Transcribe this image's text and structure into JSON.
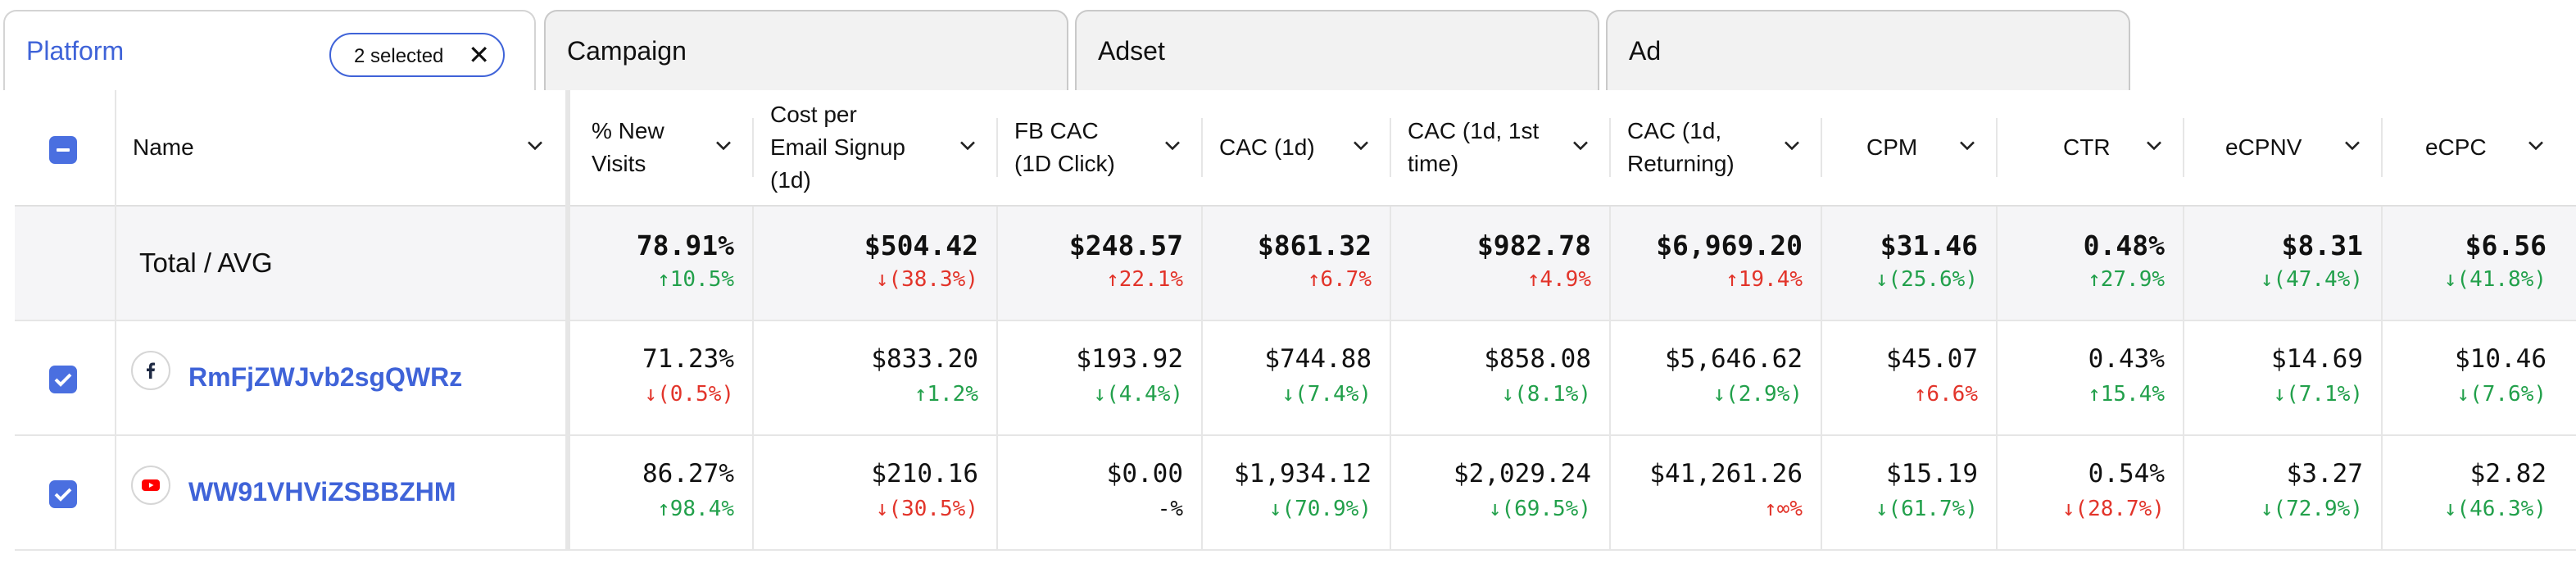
{
  "tabs": [
    {
      "label": "Platform",
      "active": true
    },
    {
      "label": "Campaign",
      "active": false
    },
    {
      "label": "Adset",
      "active": false
    },
    {
      "label": "Ad",
      "active": false
    }
  ],
  "selection_chip": {
    "label": "2 selected",
    "icon": "close-icon"
  },
  "columns": [
    {
      "label": "Name"
    },
    {
      "label": "% New\nVisits"
    },
    {
      "label": "Cost per\nEmail Signup\n(1d)"
    },
    {
      "label": "FB CAC\n(1D Click)"
    },
    {
      "label": "CAC (1d)"
    },
    {
      "label": "CAC (1d, 1st\ntime)"
    },
    {
      "label": "CAC (1d,\nReturning)"
    },
    {
      "label": "CPM"
    },
    {
      "label": "CTR"
    },
    {
      "label": "eCPNV"
    },
    {
      "label": "eCPC"
    }
  ],
  "total_row": {
    "label": "Total / AVG",
    "cells": [
      {
        "value": "78.91%",
        "change": "↑10.5%",
        "dir": "up"
      },
      {
        "value": "$504.42",
        "change": "↓(38.3%)",
        "dir": "down"
      },
      {
        "value": "$248.57",
        "change": "↑22.1%",
        "dir": "down"
      },
      {
        "value": "$861.32",
        "change": "↑6.7%",
        "dir": "down"
      },
      {
        "value": "$982.78",
        "change": "↑4.9%",
        "dir": "down"
      },
      {
        "value": "$6,969.20",
        "change": "↑19.4%",
        "dir": "down"
      },
      {
        "value": "$31.46",
        "change": "↓(25.6%)",
        "dir": "up"
      },
      {
        "value": "0.48%",
        "change": "↑27.9%",
        "dir": "up"
      },
      {
        "value": "$8.31",
        "change": "↓(47.4%)",
        "dir": "up"
      },
      {
        "value": "$6.56",
        "change": "↓(41.8%)",
        "dir": "up"
      }
    ]
  },
  "rows": [
    {
      "name": "RmFjZWJvb2sgQWRz",
      "platform_icon": "facebook-icon",
      "checked": true,
      "cells": [
        {
          "value": "71.23%",
          "change": "↓(0.5%)",
          "dir": "down"
        },
        {
          "value": "$833.20",
          "change": "↑1.2%",
          "dir": "up"
        },
        {
          "value": "$193.92",
          "change": "↓(4.4%)",
          "dir": "up"
        },
        {
          "value": "$744.88",
          "change": "↓(7.4%)",
          "dir": "up"
        },
        {
          "value": "$858.08",
          "change": "↓(8.1%)",
          "dir": "up"
        },
        {
          "value": "$5,646.62",
          "change": "↓(2.9%)",
          "dir": "up"
        },
        {
          "value": "$45.07",
          "change": "↑6.6%",
          "dir": "down"
        },
        {
          "value": "0.43%",
          "change": "↑15.4%",
          "dir": "up"
        },
        {
          "value": "$14.69",
          "change": "↓(7.1%)",
          "dir": "up"
        },
        {
          "value": "$10.46",
          "change": "↓(7.6%)",
          "dir": "up"
        }
      ]
    },
    {
      "name": "WW91VHViZSBBZHM",
      "platform_icon": "youtube-icon",
      "checked": true,
      "cells": [
        {
          "value": "86.27%",
          "change": "↑98.4%",
          "dir": "up"
        },
        {
          "value": "$210.16",
          "change": "↓(30.5%)",
          "dir": "down"
        },
        {
          "value": "$0.00",
          "change": "-%",
          "dir": "neutral"
        },
        {
          "value": "$1,934.12",
          "change": "↓(70.9%)",
          "dir": "up"
        },
        {
          "value": "$2,029.24",
          "change": "↓(69.5%)",
          "dir": "up"
        },
        {
          "value": "$41,261.26",
          "change": "↑∞%",
          "dir": "down"
        },
        {
          "value": "$15.19",
          "change": "↓(61.7%)",
          "dir": "up"
        },
        {
          "value": "0.54%",
          "change": "↓(28.7%)",
          "dir": "down"
        },
        {
          "value": "$3.27",
          "change": "↓(72.9%)",
          "dir": "up"
        },
        {
          "value": "$2.82",
          "change": "↓(46.3%)",
          "dir": "up"
        }
      ]
    }
  ],
  "colors": {
    "accent": "#3f63d8",
    "positive": "#22a04b",
    "negative": "#e2342a"
  }
}
